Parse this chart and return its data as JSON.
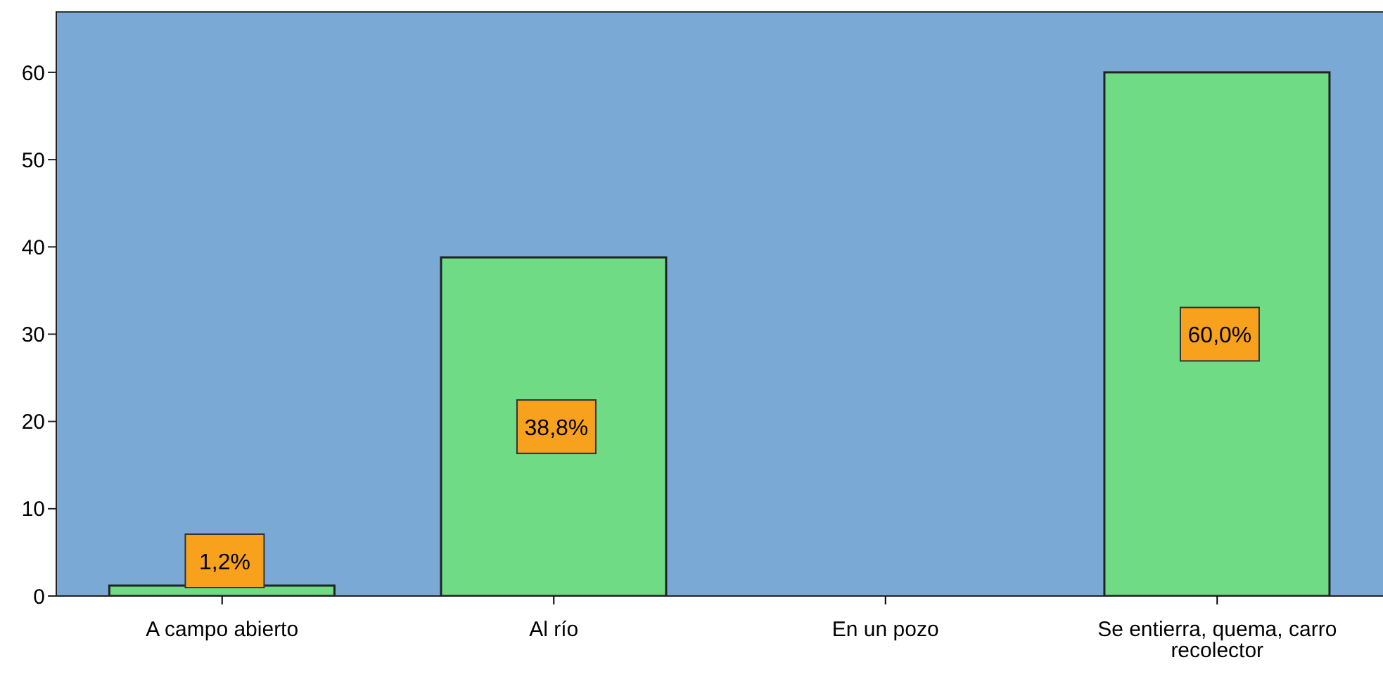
{
  "chart_data": {
    "type": "bar",
    "categories": [
      "A campo abierto",
      "Al río",
      "En un pozo",
      "Se entierra, quema, carro recolector"
    ],
    "values": [
      1.2,
      38.8,
      0,
      60.0
    ],
    "value_labels": [
      "1,2%",
      "38,8%",
      null,
      "60,0%"
    ],
    "color": "#6fdc85",
    "ylim": [
      0,
      67
    ],
    "yticks": [
      0,
      10,
      20,
      30,
      40,
      50,
      60
    ],
    "grid": false
  }
}
